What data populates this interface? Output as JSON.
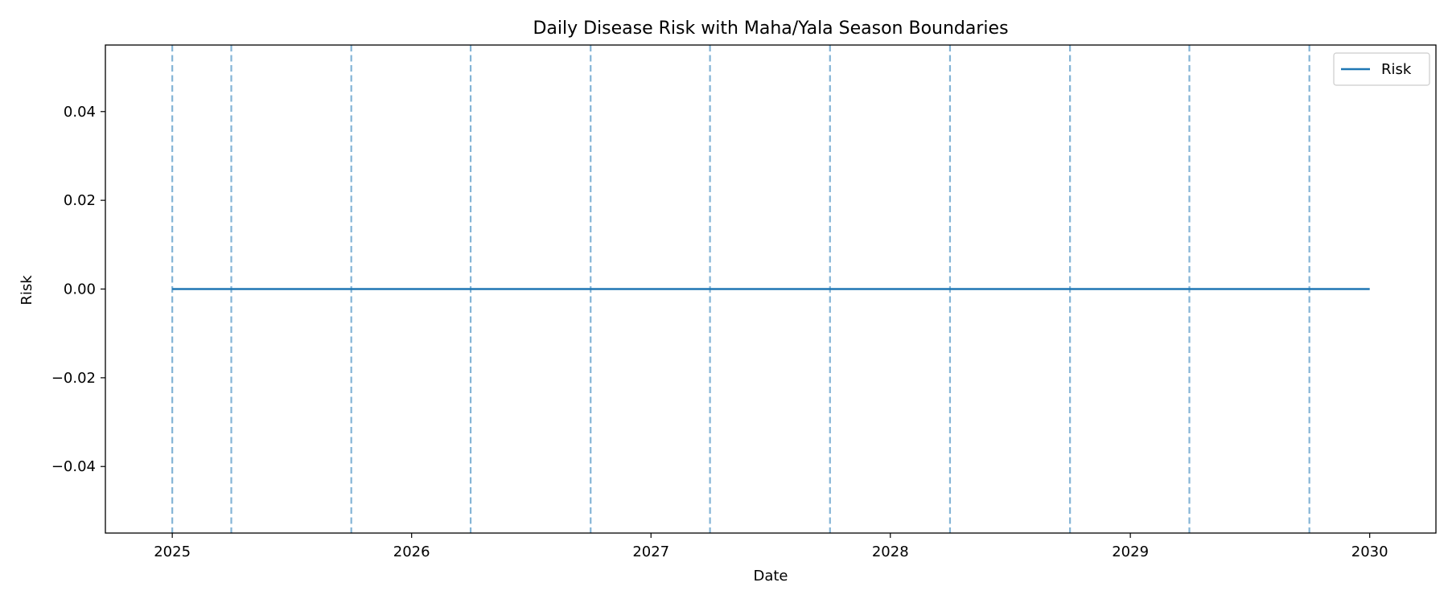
{
  "chart_data": {
    "type": "line",
    "title": "Daily Disease Risk with Maha/Yala Season Boundaries",
    "xlabel": "Date",
    "ylabel": "Risk",
    "xlim": [
      "2024-09-21",
      "2030-04-12"
    ],
    "ylim": [
      -0.055,
      0.055
    ],
    "x_ticks": [
      "2025",
      "2026",
      "2027",
      "2028",
      "2029",
      "2030"
    ],
    "y_ticks": [
      0.04,
      0.02,
      0.0,
      -0.02,
      -0.04
    ],
    "y_tick_labels": [
      "0.04",
      "0.02",
      "0.00",
      "−0.02",
      "−0.04"
    ],
    "grid": false,
    "legend_position": "upper right",
    "series": [
      {
        "name": "Risk",
        "color": "#1f77b4",
        "x": [
          "2025-01-01",
          "2030-01-01"
        ],
        "y": [
          0.0,
          0.0
        ]
      }
    ],
    "vlines": {
      "color": "#1f77b4",
      "style": "dashed",
      "dates": [
        "2025-01-01",
        "2025-04-01",
        "2025-10-01",
        "2026-04-01",
        "2026-10-01",
        "2027-04-01",
        "2027-10-01",
        "2028-04-01",
        "2028-10-01",
        "2029-04-01",
        "2029-10-01"
      ]
    }
  }
}
